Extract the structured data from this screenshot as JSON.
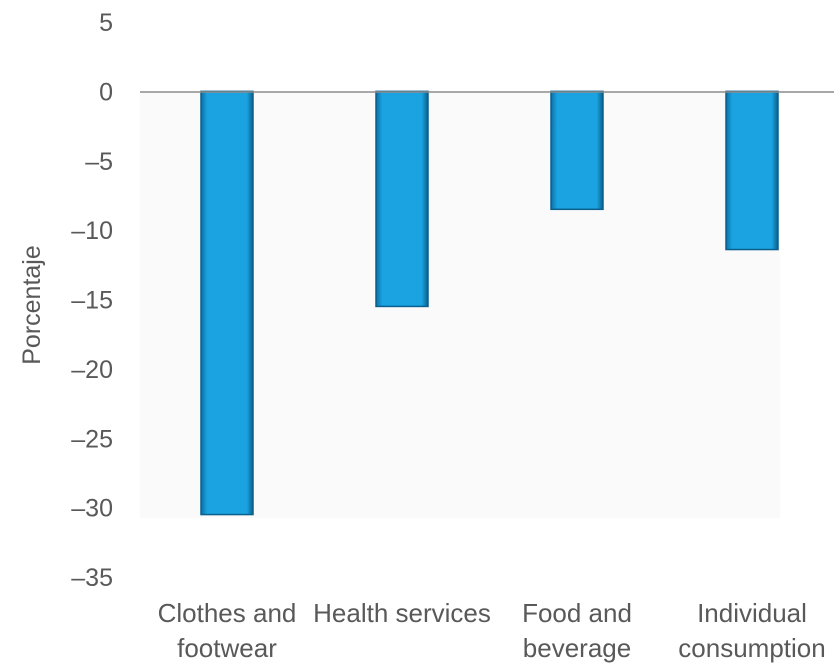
{
  "chart_data": {
    "type": "bar",
    "categories": [
      [
        "Clothes and",
        "footwear"
      ],
      [
        "Health services"
      ],
      [
        "Food and",
        "beverage"
      ],
      [
        "Individual",
        "consumption"
      ]
    ],
    "values": [
      -30.5,
      -15.5,
      -8.5,
      -11.4
    ],
    "ylabel": "Porcentaje",
    "xlabel": "",
    "ylim": [
      -35,
      5
    ],
    "yticks": [
      5,
      0,
      -5,
      -10,
      -15,
      -20,
      -25,
      -30,
      -35
    ],
    "ytick_labels": [
      "5",
      "0",
      "–5",
      "–10",
      "–15",
      "–20",
      "–25",
      "–30",
      "–35"
    ],
    "grid": false,
    "colors": {
      "bar": "#1aa3e0",
      "bar_edge": "#0b5f8c",
      "zero_line": "#8c8c8c",
      "plot_bg": "#fafafa"
    }
  }
}
